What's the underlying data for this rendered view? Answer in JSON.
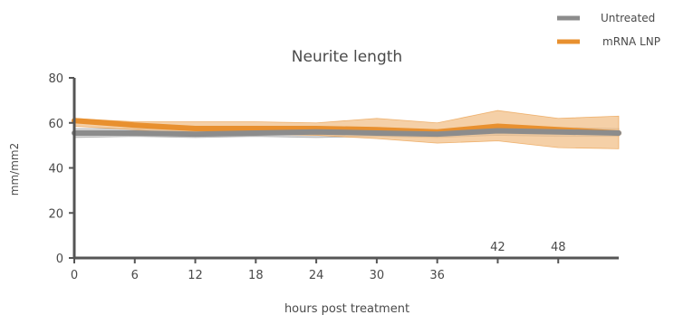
{
  "chart_data": {
    "type": "line",
    "title": "Neurite length",
    "xlabel": "hours post treatment",
    "ylabel": "mm/mm2",
    "ylim": [
      0,
      80
    ],
    "xlim": [
      0,
      54
    ],
    "x_ticks": [
      0,
      6,
      12,
      18,
      24,
      30,
      36,
      42,
      48
    ],
    "y_ticks": [
      0,
      20,
      40,
      60,
      80
    ],
    "legend_position": "top-right",
    "grid": false,
    "x": [
      0,
      6,
      12,
      18,
      24,
      30,
      36,
      42,
      48,
      54
    ],
    "series": [
      {
        "name": "Untreated",
        "color": "#8c8c8c",
        "band_color": "#cfcfcf",
        "values": [
          55.5,
          55.5,
          55.0,
          55.5,
          56.0,
          55.5,
          55.0,
          56.5,
          56.0,
          55.5
        ],
        "lower": [
          53.5,
          54.0,
          53.5,
          54.0,
          53.5,
          54.0,
          53.5,
          54.5,
          54.0,
          54.0
        ],
        "upper": [
          57.5,
          57.5,
          57.0,
          57.5,
          58.5,
          57.5,
          57.0,
          58.5,
          58.0,
          57.5
        ]
      },
      {
        "name": "mRNA LNP",
        "color": "#e8902f",
        "band_color": "#f1c089",
        "values": [
          61.0,
          59.0,
          57.5,
          57.5,
          57.5,
          57.0,
          56.0,
          58.5,
          57.0,
          55.5
        ],
        "lower": [
          58.5,
          57.0,
          54.5,
          55.0,
          54.5,
          53.0,
          51.0,
          52.0,
          49.0,
          48.5
        ],
        "upper": [
          62.0,
          60.5,
          60.5,
          60.5,
          60.0,
          62.0,
          60.0,
          65.5,
          62.0,
          63.0
        ]
      }
    ]
  }
}
